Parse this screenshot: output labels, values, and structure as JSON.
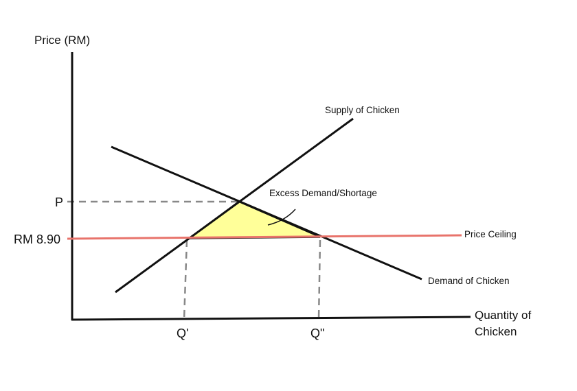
{
  "diagram": {
    "y_axis_label": "Price (RM)",
    "x_axis_label_line1": "Quantity of",
    "x_axis_label_line2": "Chicken",
    "price_p_label": "P",
    "price_ceiling_value_label": "RM 8.90",
    "q_prime_label": "Q'",
    "q_double_prime_label": "Q\"",
    "supply_label": "Supply of Chicken",
    "demand_label": "Demand of Chicken",
    "price_ceiling_label": "Price Ceiling",
    "shortage_label": "Excess Demand/Shortage",
    "colors": {
      "axis": "#111111",
      "curves": "#111111",
      "price_ceiling": "#e8736b",
      "shortage_fill": "#ffff99",
      "dashed": "#888888"
    }
  }
}
